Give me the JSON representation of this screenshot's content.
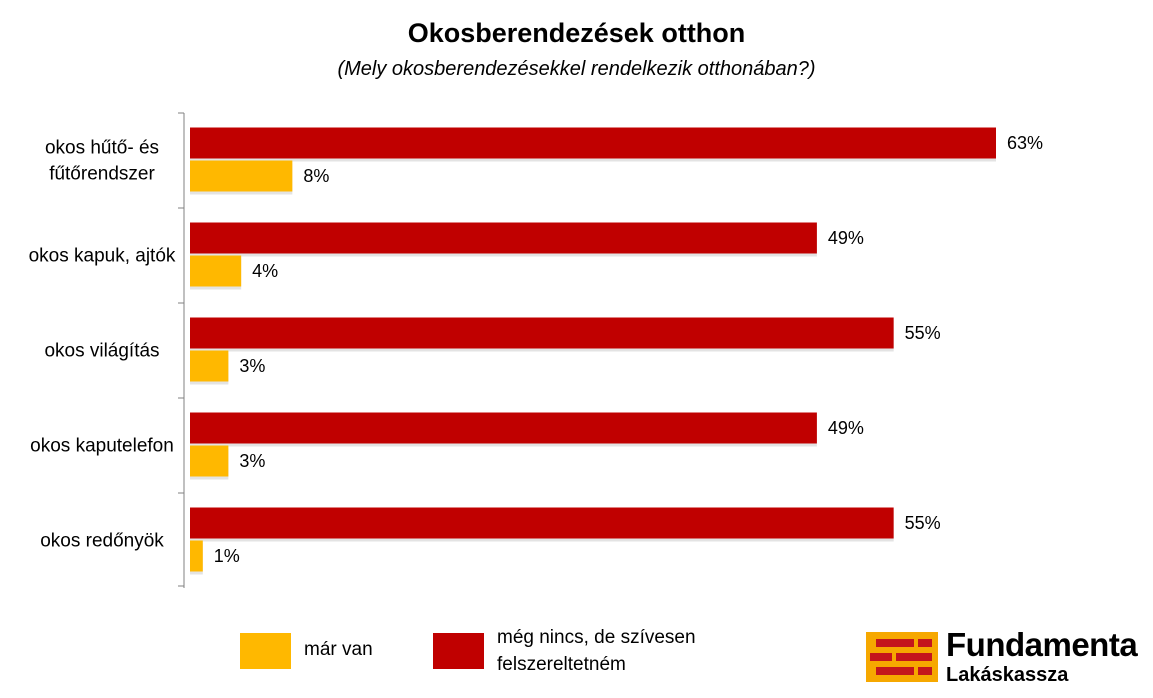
{
  "chart_data": {
    "type": "bar",
    "orientation": "horizontal",
    "title": "Okosberendezések otthon",
    "subtitle": "(Mely okosberendezésekkel rendelkezik otthonában?)",
    "categories": [
      [
        "okos hűtő- és",
        "fűtőrendszer"
      ],
      [
        "okos kapuk, ajtók"
      ],
      [
        "okos világítás"
      ],
      [
        "okos kaputelefon"
      ],
      [
        "okos redőnyök"
      ]
    ],
    "series": [
      {
        "name": "még nincs, de szívesen felszereltetném",
        "color": "#c00000",
        "values": [
          63,
          49,
          55,
          49,
          55
        ],
        "labels": [
          "63%",
          "49%",
          "55%",
          "49%",
          "55%"
        ]
      },
      {
        "name": "már van",
        "color": "#ffb800",
        "values": [
          8,
          4,
          3,
          3,
          1
        ],
        "labels": [
          "8%",
          "4%",
          "3%",
          "3%",
          "1%"
        ]
      }
    ],
    "xlim": [
      0,
      63
    ],
    "grid": false,
    "legend_position": "bottom"
  },
  "legend": {
    "items": [
      {
        "lines": [
          "már van"
        ],
        "color": "#ffb800"
      },
      {
        "lines": [
          "még nincs, de szívesen",
          "felszereltetném"
        ],
        "color": "#c00000"
      }
    ]
  },
  "logo": {
    "name": "Fundamenta",
    "sub": "Lakáskassza"
  }
}
